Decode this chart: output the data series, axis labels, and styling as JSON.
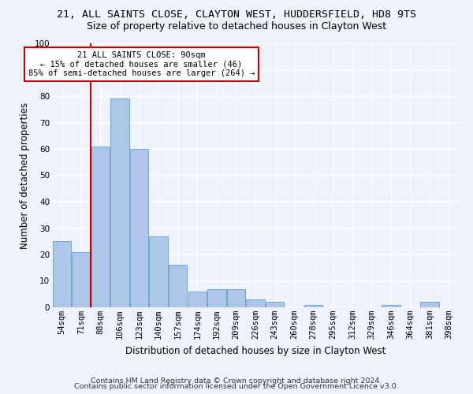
{
  "title_line1": "21, ALL SAINTS CLOSE, CLAYTON WEST, HUDDERSFIELD, HD8 9TS",
  "title_line2": "Size of property relative to detached houses in Clayton West",
  "xlabel": "Distribution of detached houses by size in Clayton West",
  "ylabel": "Number of detached properties",
  "bar_color": "#aec6e8",
  "bar_edge_color": "#6aaad4",
  "vline_color": "#cc0000",
  "vline_index": 2,
  "annotation_text": "21 ALL SAINTS CLOSE: 90sqm\n← 15% of detached houses are smaller (46)\n85% of semi-detached houses are larger (264) →",
  "annotation_box_color": "#ffffff",
  "annotation_box_edge_color": "#cc0000",
  "categories": [
    "54sqm",
    "71sqm",
    "88sqm",
    "106sqm",
    "123sqm",
    "140sqm",
    "157sqm",
    "174sqm",
    "192sqm",
    "209sqm",
    "226sqm",
    "243sqm",
    "260sqm",
    "278sqm",
    "295sqm",
    "312sqm",
    "329sqm",
    "346sqm",
    "364sqm",
    "381sqm",
    "398sqm"
  ],
  "values": [
    25,
    21,
    61,
    79,
    60,
    27,
    16,
    6,
    7,
    7,
    3,
    2,
    0,
    1,
    0,
    0,
    0,
    1,
    0,
    2,
    0
  ],
  "ylim": [
    0,
    100
  ],
  "yticks": [
    0,
    10,
    20,
    30,
    40,
    50,
    60,
    70,
    80,
    90,
    100
  ],
  "footer_line1": "Contains HM Land Registry data © Crown copyright and database right 2024.",
  "footer_line2": "Contains public sector information licensed under the Open Government Licence v3.0.",
  "background_color": "#eef2fb",
  "grid_color": "#ffffff",
  "title_fontsize": 9.5,
  "subtitle_fontsize": 9,
  "axis_label_fontsize": 8.5,
  "tick_fontsize": 7.5,
  "footer_fontsize": 6.8,
  "annotation_fontsize": 7.5
}
